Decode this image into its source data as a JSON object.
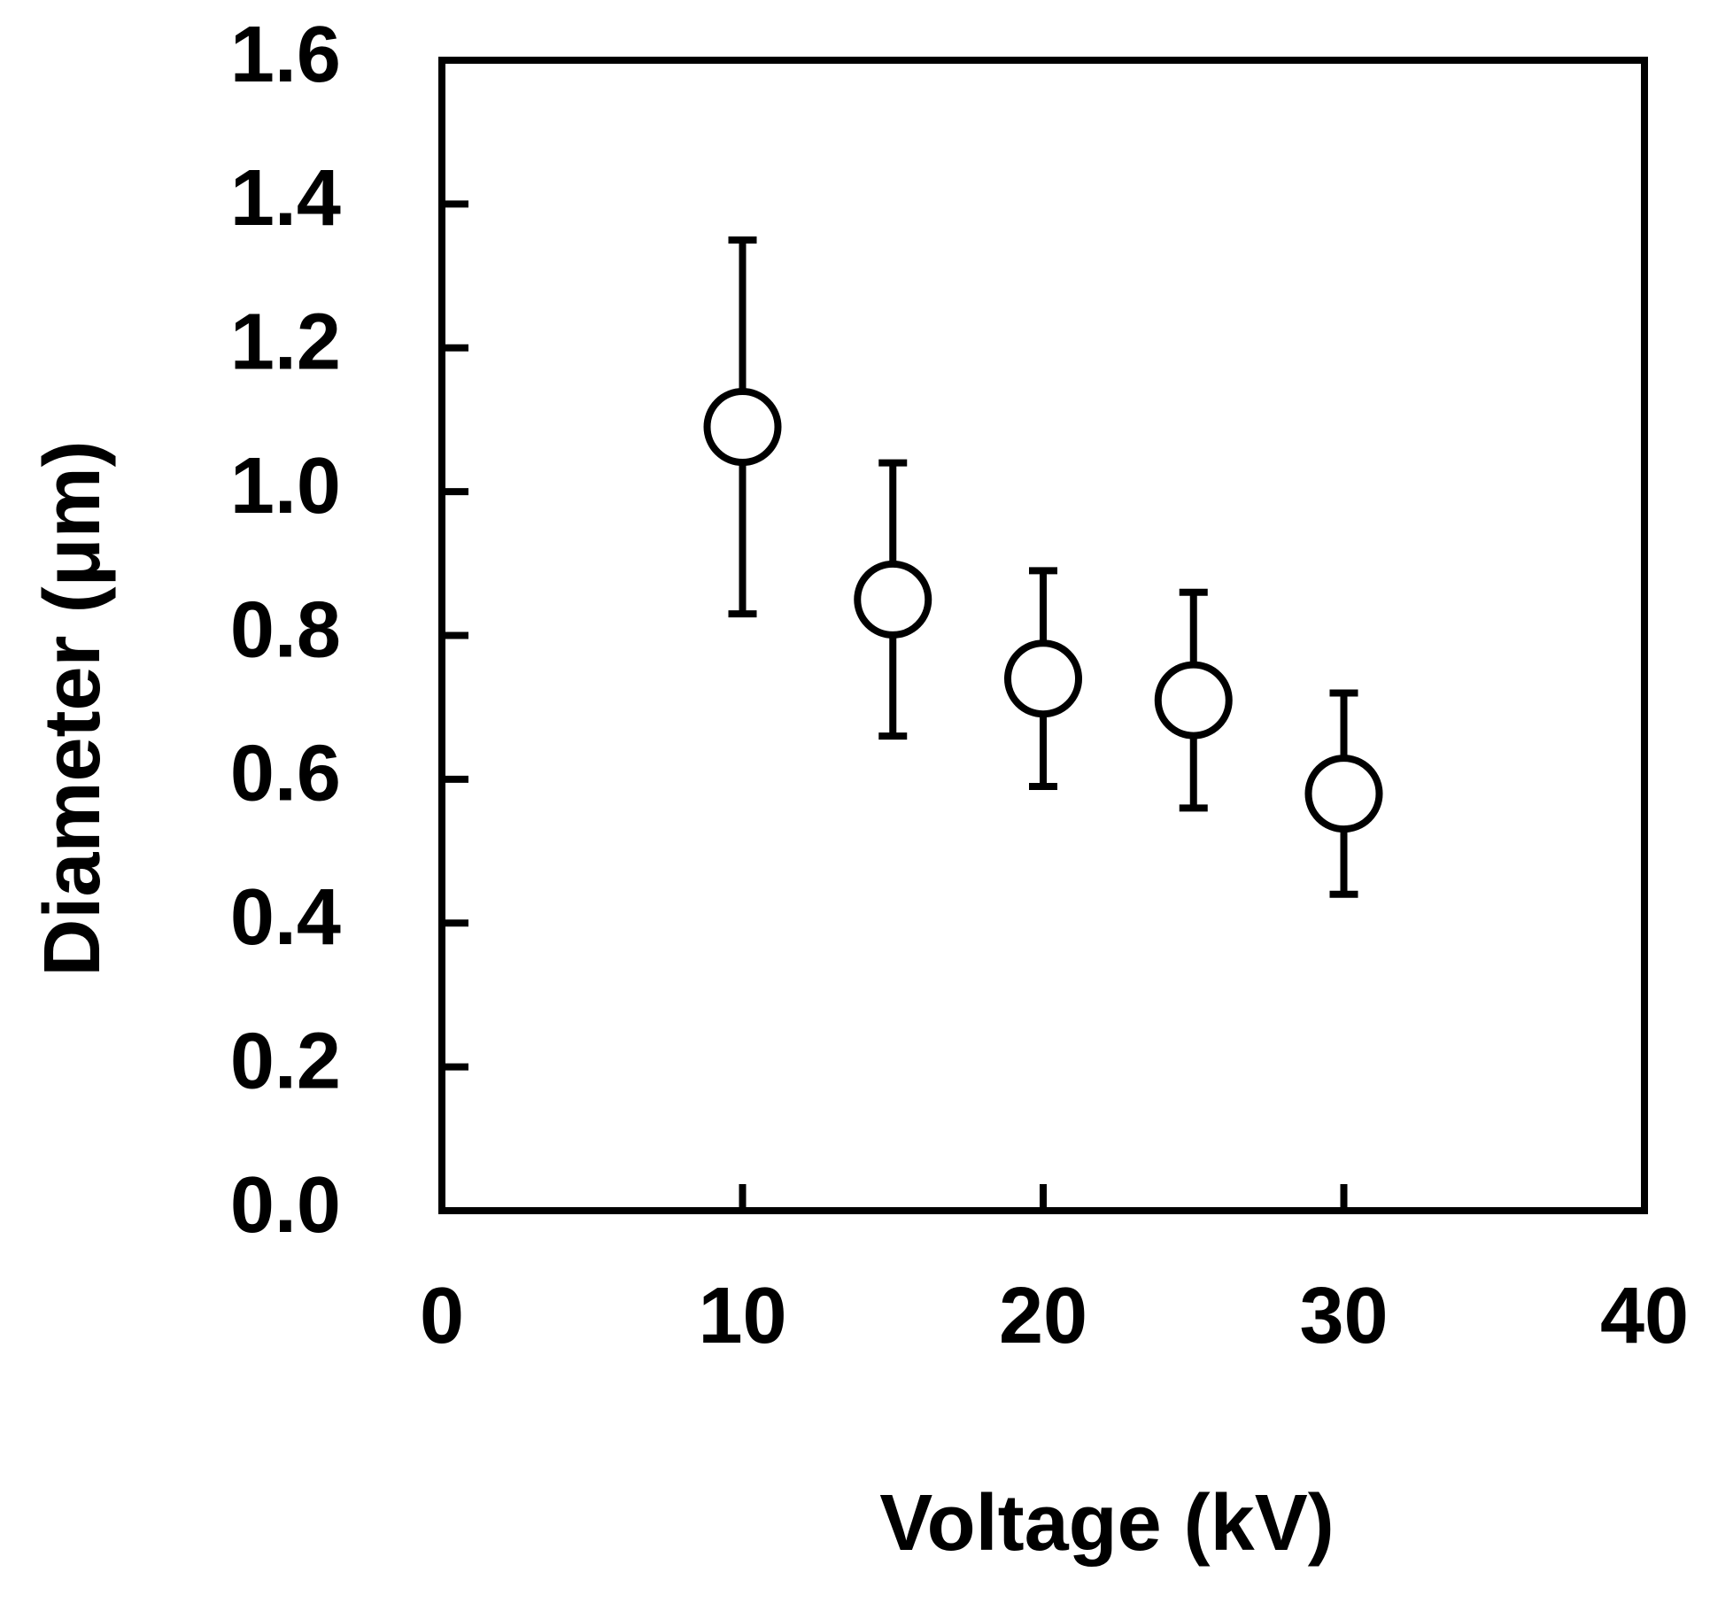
{
  "chart_data": {
    "type": "scatter",
    "x_label": "Voltage (kV)",
    "y_label": "Diameter (μm)",
    "x": [
      10,
      15,
      20,
      25,
      30
    ],
    "values": [
      1.09,
      0.85,
      0.74,
      0.71,
      0.58
    ],
    "errors": [
      0.26,
      0.19,
      0.15,
      0.15,
      0.14
    ],
    "color": "#000000",
    "xlim": [
      0,
      40
    ],
    "xticks": [
      0,
      10,
      20,
      30,
      40
    ],
    "ylim": [
      0,
      1.6
    ],
    "yticks": [
      {
        "value": 0,
        "label": "0.0"
      },
      0.2,
      0.4,
      0.6,
      0.8,
      {
        "value": 1,
        "label": "1.0"
      },
      1.2,
      1.4,
      1.6
    ],
    "grid": false
  }
}
